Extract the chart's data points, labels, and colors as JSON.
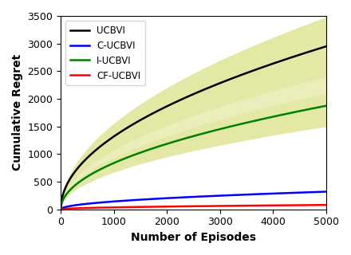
{
  "title": "",
  "xlabel": "Number of Episodes",
  "ylabel": "Cumulative Regret",
  "xlim": [
    0,
    5000
  ],
  "ylim": [
    0,
    3500
  ],
  "xticks": [
    0,
    1000,
    2000,
    3000,
    4000,
    5000
  ],
  "yticks": [
    0,
    500,
    1000,
    1500,
    2000,
    2500,
    3000,
    3500
  ],
  "n_points": 300,
  "shade_color": "#d4db6a",
  "shade_alpha": 0.45,
  "series": {
    "UCBVI": {
      "color": "black",
      "linewidth": 1.8,
      "mean_end": 2950,
      "upper_end": 3480,
      "lower_end": 2400,
      "type": "sqrt",
      "has_shade": true
    },
    "C-UCBVI": {
      "color": "blue",
      "linewidth": 1.8,
      "mean_end": 320,
      "type": "sqrt",
      "has_shade": false
    },
    "I-UCBVI": {
      "color": "green",
      "linewidth": 1.8,
      "mean_end": 1875,
      "upper_end": 2100,
      "lower_end": 1500,
      "type": "sqrt",
      "has_shade": true
    },
    "CF-UCBVI": {
      "color": "red",
      "linewidth": 1.8,
      "mean_end": 80,
      "type": "sqrt",
      "has_shade": false
    }
  },
  "legend_labels": [
    "UCBVI",
    "C-UCBVI",
    "I-UCBVI",
    "CF-UCBVI"
  ],
  "legend_loc": "upper left",
  "figsize": [
    4.4,
    3.2
  ],
  "dpi": 100
}
